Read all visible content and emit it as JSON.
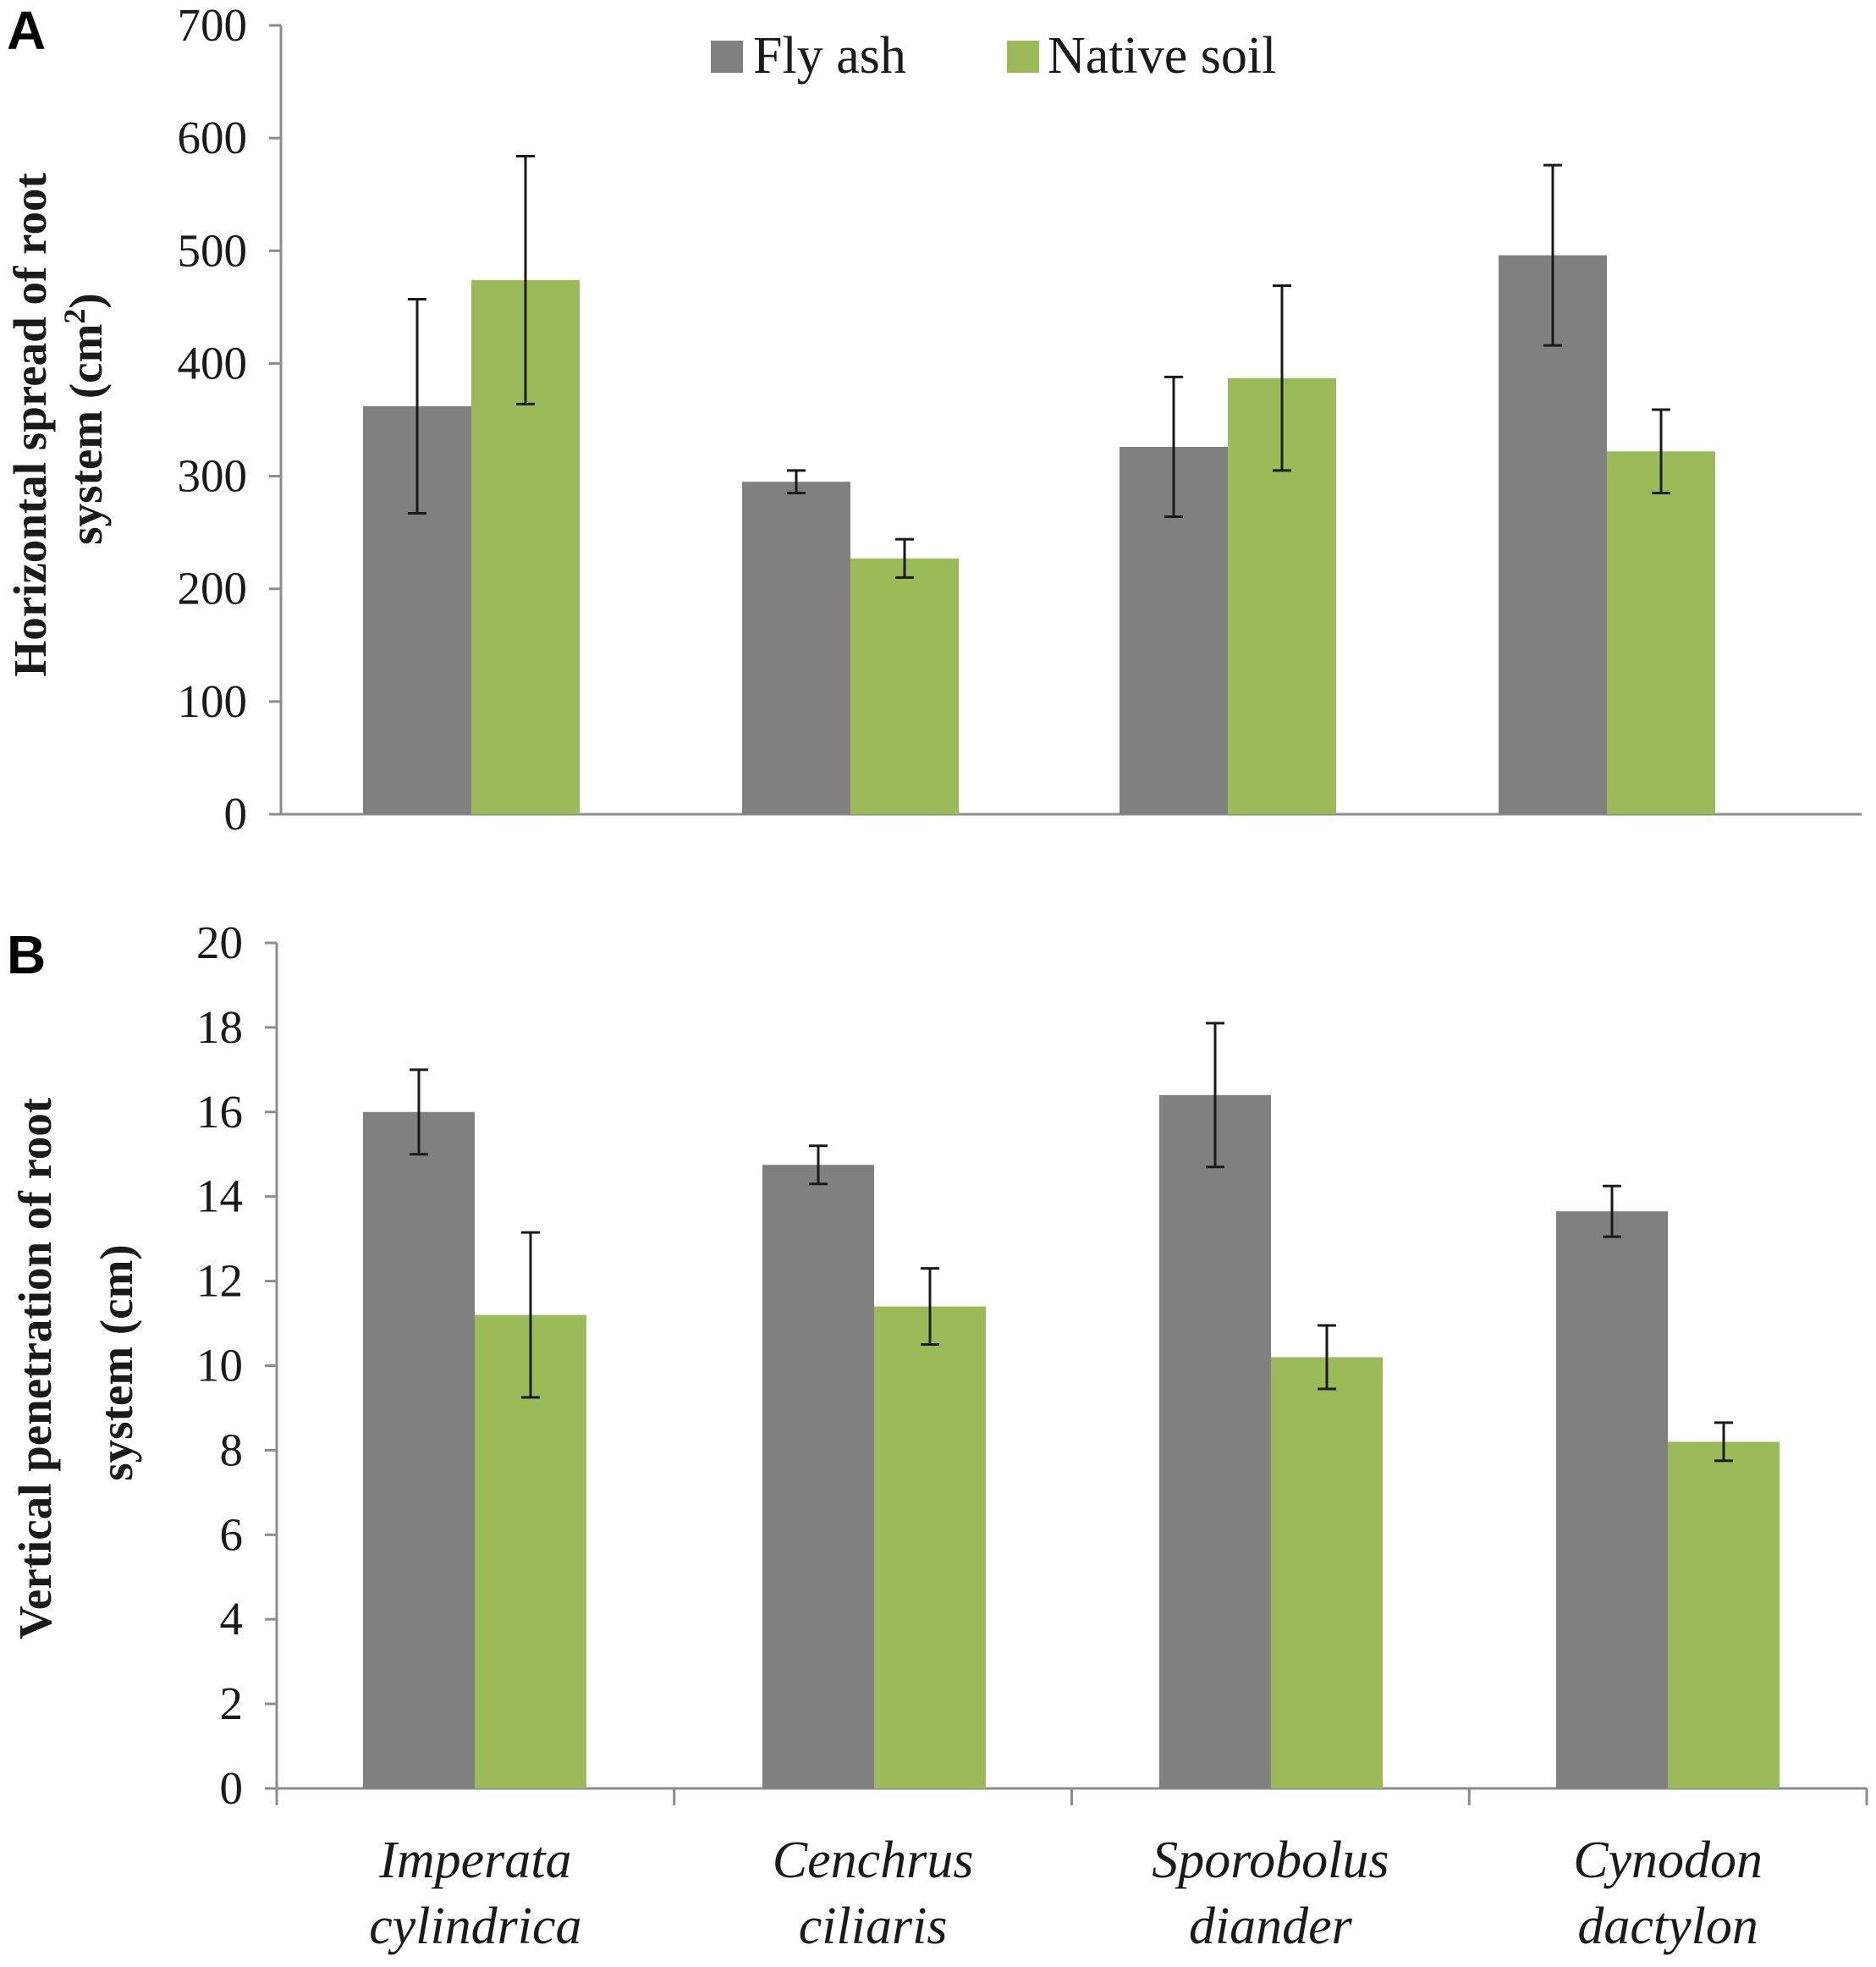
{
  "chart_data": [
    {
      "type": "bar",
      "panel": "A",
      "categories": [
        [
          "Imperata",
          "cylindrica"
        ],
        [
          "Cenchrus",
          "ciliaris"
        ],
        [
          "Sporobolus",
          "diander"
        ],
        [
          "Cynodon",
          "dactylon"
        ]
      ],
      "series": [
        {
          "name": "Fly ash",
          "color": "#808080",
          "values": [
            362,
            295,
            326,
            496
          ],
          "errors": [
            95,
            10,
            62,
            80
          ]
        },
        {
          "name": "Native soil",
          "color": "#9bbb59",
          "values": [
            474,
            227,
            387,
            322
          ],
          "errors": [
            110,
            17,
            82,
            37
          ]
        }
      ],
      "ylabel_lines": [
        "Horizontal spread of root",
        "system  (cm",
        "2",
        ")"
      ],
      "ylim": [
        0,
        700
      ],
      "yticks": [
        "0",
        "100",
        "200",
        "300",
        "400",
        "500",
        "600",
        "700"
      ],
      "legend": "top-center",
      "show_category_labels": false
    },
    {
      "type": "bar",
      "panel": "B",
      "categories": [
        [
          "Imperata",
          "cylindrica"
        ],
        [
          "Cenchrus",
          "ciliaris"
        ],
        [
          "Sporobolus",
          "diander"
        ],
        [
          "Cynodon",
          "dactylon"
        ]
      ],
      "series": [
        {
          "name": "Fly ash",
          "color": "#808080",
          "values": [
            16.0,
            14.75,
            16.4,
            13.65
          ],
          "errors": [
            1.0,
            0.45,
            1.7,
            0.6
          ]
        },
        {
          "name": "Native soil",
          "color": "#9bbb59",
          "values": [
            11.2,
            11.4,
            10.2,
            8.2
          ],
          "errors": [
            1.95,
            0.9,
            0.75,
            0.45
          ]
        }
      ],
      "ylabel_lines": [
        "Vertical penetration of root",
        "system (cm)"
      ],
      "ylim": [
        0,
        20
      ],
      "yticks": [
        "0",
        "2",
        "4",
        "6",
        "8",
        "10",
        "12",
        "14",
        "16",
        "18",
        "20"
      ],
      "show_category_labels": true
    }
  ]
}
